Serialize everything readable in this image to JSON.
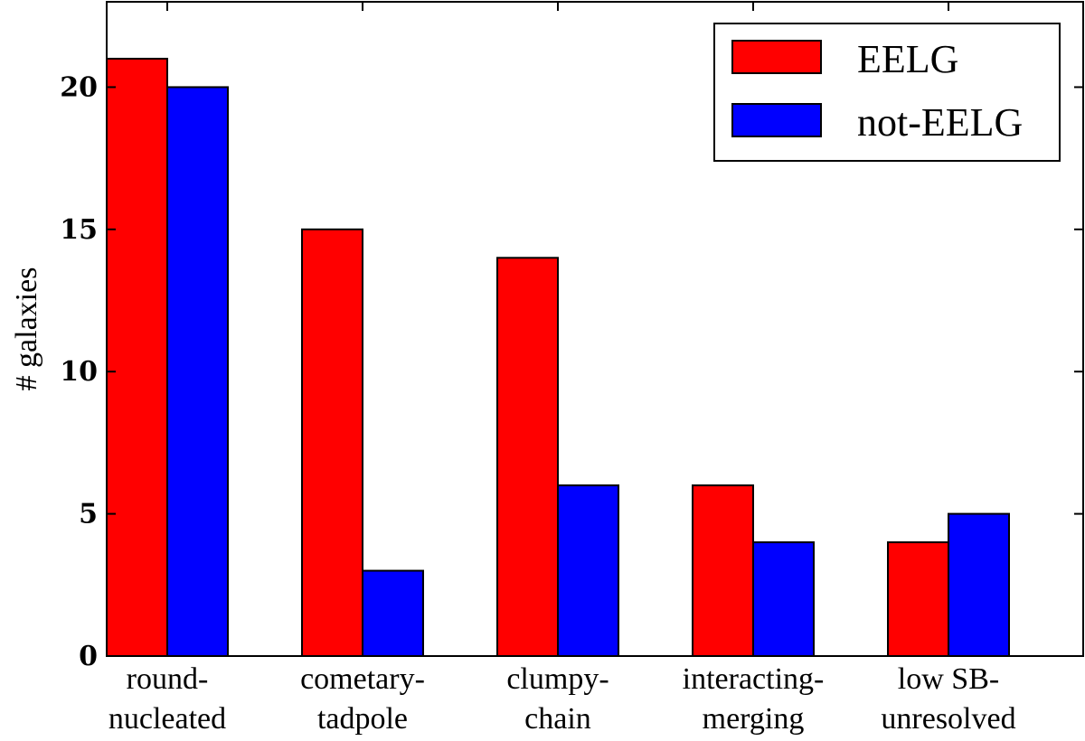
{
  "chart_data": {
    "type": "bar",
    "categories": [
      [
        "round-",
        "nucleated"
      ],
      [
        "cometary-",
        "tadpole"
      ],
      [
        "clumpy-",
        "chain"
      ],
      [
        "interacting-",
        "merging"
      ],
      [
        "low SB-",
        "unresolved"
      ]
    ],
    "series": [
      {
        "name": "EELG",
        "color": "#ff0000",
        "values": [
          21,
          15,
          14,
          6,
          4
        ]
      },
      {
        "name": "not-EELG",
        "color": "#0000ff",
        "values": [
          20,
          3,
          6,
          4,
          5
        ]
      }
    ],
    "ylabel": "# galaxies",
    "ylim": [
      0,
      23
    ],
    "yticks": [
      0,
      5,
      10,
      15,
      20
    ],
    "grid": false,
    "legend_position": "top-right"
  }
}
